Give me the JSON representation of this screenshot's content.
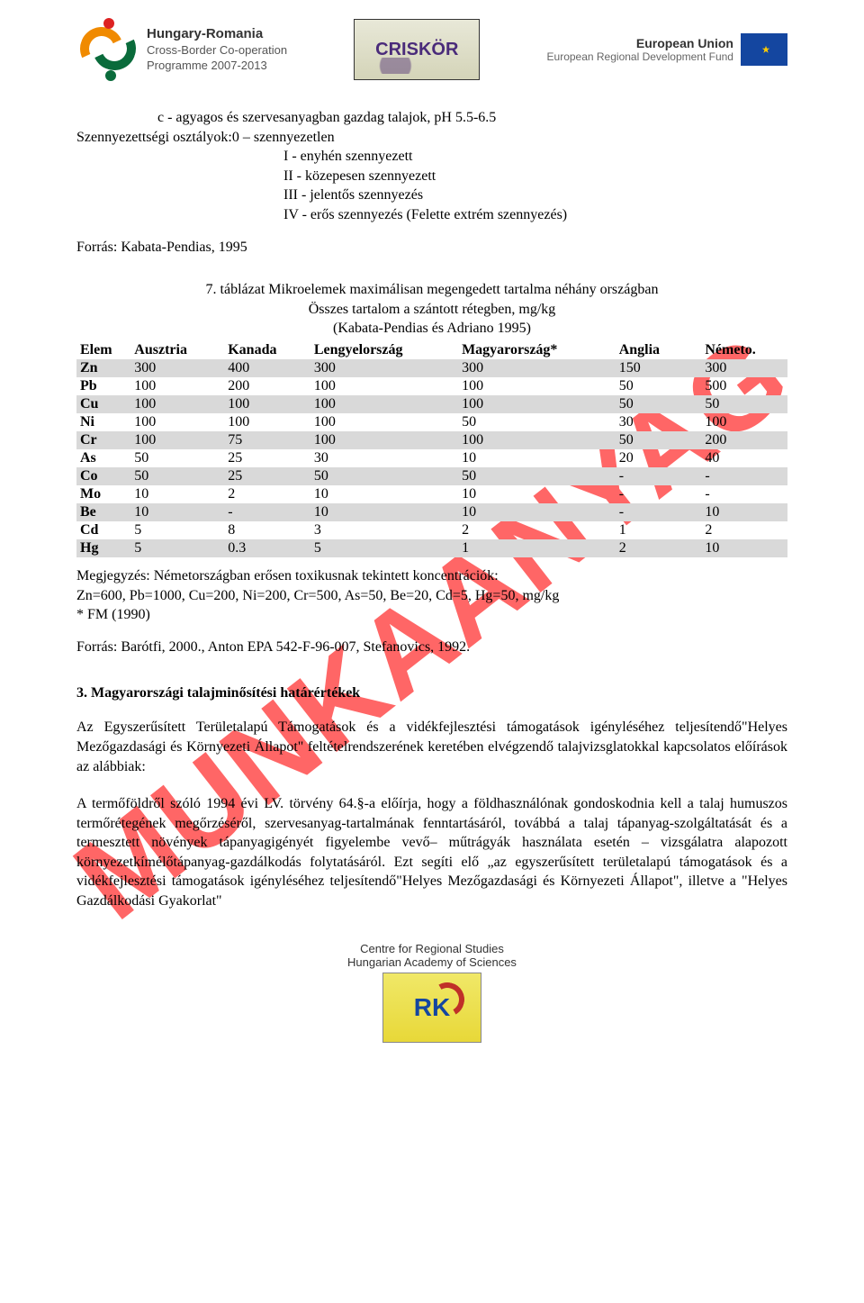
{
  "header": {
    "logo_left": {
      "line1": "Hungary-Romania",
      "line2": "Cross-Border Co-operation",
      "line3": "Programme 2007-2013"
    },
    "logo_center": "CRISKÖR",
    "logo_right": {
      "line1": "European Union",
      "line2": "European Regional Development Fund"
    }
  },
  "legend": {
    "c_line": "c - agyagos és szervesanyagban gazdag talajok, pH 5.5-6.5",
    "classes_label": "Szennyezettségi osztályok:",
    "items": [
      "0 – szennyezetlen",
      "I - enyhén szennyezett",
      "II - közepesen szennyezett",
      "III - jelentős szennyezés",
      "IV - erős szennyezés (Felette extrém szennyezés)"
    ],
    "source": "Forrás: Kabata-Pendias, 1995"
  },
  "table": {
    "caption_line1": "7. táblázat Mikroelemek maximálisan megengedett tartalma néhány országban",
    "caption_line2": "Összes tartalom a szántott rétegben, mg/kg",
    "caption_line3": "(Kabata-Pendias és Adriano 1995)",
    "columns": [
      "Elem",
      "Ausztria",
      "Kanada",
      "Lengyelország",
      "Magyarország*",
      "Anglia",
      "Németo."
    ],
    "rows": [
      {
        "shaded": true,
        "cells": [
          "Zn",
          "300",
          "400",
          "300",
          "300",
          "150",
          "300"
        ]
      },
      {
        "shaded": false,
        "cells": [
          "Pb",
          "100",
          "200",
          "100",
          "100",
          "50",
          "500"
        ]
      },
      {
        "shaded": true,
        "cells": [
          "Cu",
          "100",
          "100",
          "100",
          "100",
          "50",
          "50"
        ]
      },
      {
        "shaded": false,
        "cells": [
          "Ni",
          "100",
          "100",
          "100",
          "50",
          "30",
          "100"
        ]
      },
      {
        "shaded": true,
        "cells": [
          "Cr",
          "100",
          "75",
          "100",
          "100",
          "50",
          "200"
        ]
      },
      {
        "shaded": false,
        "cells": [
          "As",
          "50",
          "25",
          "30",
          "10",
          "20",
          "40"
        ]
      },
      {
        "shaded": true,
        "cells": [
          "Co",
          "50",
          "25",
          "50",
          "50",
          "-",
          "-"
        ]
      },
      {
        "shaded": false,
        "cells": [
          "Mo",
          "10",
          "2",
          "10",
          "10",
          "-",
          "-"
        ]
      },
      {
        "shaded": true,
        "cells": [
          "Be",
          "10",
          "-",
          "10",
          "10",
          "-",
          "10"
        ]
      },
      {
        "shaded": false,
        "cells": [
          "Cd",
          "5",
          "8",
          "3",
          "2",
          "1",
          "2"
        ]
      },
      {
        "shaded": true,
        "cells": [
          "Hg",
          "5",
          "0.3",
          "5",
          "1",
          "2",
          "10"
        ]
      }
    ],
    "note_line1": "Megjegyzés: Németországban erősen toxikusnak tekintett koncentrációk:",
    "note_line2": "Zn=600, Pb=1000, Cu=200, Ni=200, Cr=500, As=50, Be=20, Cd=5, Hg=50, mg/kg",
    "note_line3": "* FM (1990)",
    "source": "Forrás: Barótfi, 2000., Anton EPA 542-F-96-007, Stefanovics, 1992."
  },
  "section3": {
    "heading": "3. Magyarországi talajminősítési határértékek",
    "para1": "Az Egyszerűsített Területalapú Támogatások és a vidékfejlesztési támogatások igényléséhez teljesítendő\"Helyes Mezőgazdasági és Környezeti Állapot\" feltételrendszerének keretében elvégzendő talajvizsglatokkal kapcsolatos előírások az alábbiak:",
    "para2": "A termőföldről szóló 1994 évi LV. törvény 64.§-a előírja, hogy a földhasználónak gondoskodnia kell a talaj humuszos termőrétegének megőrzéséről, szervesanyag-tartalmának fenntartásáról, továbbá a talaj tápanyag-szolgáltatását és a termesztett növények tápanyagigényét figyelembe vevő– műtrágyák használata esetén – vizsgálatra alapozott környezetkímélőtápanyag-gazdálkodás folytatásáról. Ezt segíti elő „az egyszerűsített területalapú támogatások és a vidékfejlesztési támogatások igényléséhez teljesítendő\"Helyes Mezőgazdasági és Környezeti Állapot\", illetve a \"Helyes Gazdálkodási Gyakorlat\""
  },
  "footer": {
    "line1": "Centre for Regional Studies",
    "line2": "Hungarian Academy of Sciences",
    "logo_text": "RK"
  },
  "watermark": "MUNKAANYAG"
}
